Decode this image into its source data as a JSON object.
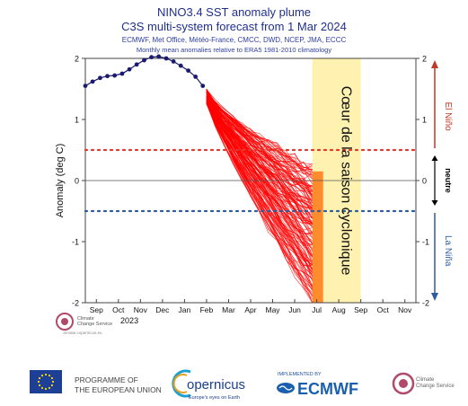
{
  "chart_data": {
    "type": "line",
    "title": "NINO3.4 SST anomaly plume",
    "subtitle": "C3S multi-system forecast from 1 Mar 2024",
    "sources_line": "ECMWF, Met Office, Météo-France, CMCC, DWD, NCEP, JMA, ECCC",
    "baseline_line": "Monthly mean anomalies relative to ERA5 1981-2010 climatology",
    "ylabel": "Anomaly (deg C)",
    "ylim": [
      -2,
      2
    ],
    "yticks": [
      -2,
      -1,
      0,
      1,
      2
    ],
    "x_tick_labels": [
      "Sep",
      "Oct",
      "Nov",
      "Dec",
      "Jan",
      "Feb",
      "Mar",
      "Apr",
      "May",
      "Jun",
      "Jul",
      "Aug",
      "Sep",
      "Oct",
      "Nov"
    ],
    "year_label": "2023",
    "thresholds": {
      "el_nino": 0.5,
      "la_nina": -0.5
    },
    "observed": {
      "name": "observed",
      "color": "#1a1a6e",
      "x": [
        0,
        0.33,
        0.67,
        1,
        1.33,
        1.67,
        2,
        2.33,
        2.67,
        3,
        3.33,
        3.67,
        4,
        4.33,
        4.67,
        5,
        5.33
      ],
      "y": [
        1.55,
        1.62,
        1.68,
        1.71,
        1.72,
        1.75,
        1.82,
        1.9,
        1.97,
        2.02,
        2.03,
        2.0,
        1.95,
        1.88,
        1.8,
        1.7,
        1.55
      ]
    },
    "forecast": {
      "color": "#ff0000",
      "start_x": 5.5,
      "end_x": 10.3,
      "start_y": [
        1.25,
        1.5
      ],
      "mean_end": -1.05,
      "spread_end": [
        -2.0,
        0.2
      ]
    },
    "season_box": {
      "label": "Cœur de la saison cyclonique",
      "from_x": 10.3,
      "to_x": 12.5,
      "color": "#fff2b0"
    },
    "right_labels": {
      "el_nino": "El Niño",
      "neutral": "neutre",
      "la_nina": "La Niña"
    },
    "colors": {
      "el_nino": "#c0392b",
      "la_nina": "#2e5c9e",
      "neutral": "#000000"
    }
  },
  "logos": {
    "inner": {
      "line1": "Climate",
      "line2": "Change Service",
      "url": "climate.copernicus.eu"
    },
    "eu_line1": "PROGRAMME OF",
    "eu_line2": "THE EUROPEAN UNION",
    "copernicus": "opernicus",
    "copernicus_tag": "Europe's eyes on Earth",
    "ecmwf_top": "IMPLEMENTED BY",
    "ecmwf": "ECMWF",
    "c3s_line1": "Climate",
    "c3s_line2": "Change Service"
  }
}
